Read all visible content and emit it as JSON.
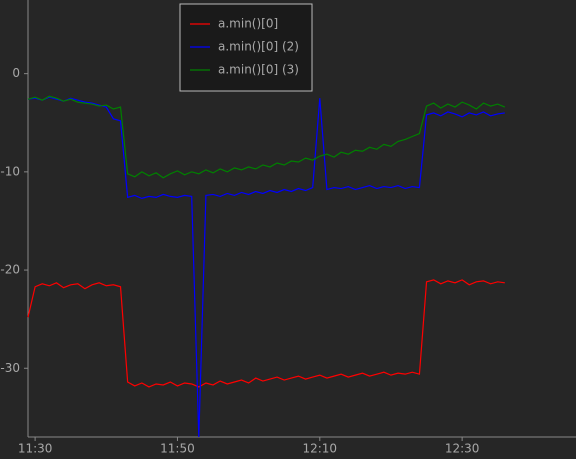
{
  "chart_data": {
    "type": "line",
    "x": [
      "11:29",
      "11:30",
      "11:31",
      "11:32",
      "11:33",
      "11:34",
      "11:35",
      "11:36",
      "11:37",
      "11:38",
      "11:39",
      "11:40",
      "11:41",
      "11:42",
      "11:43",
      "11:44",
      "11:45",
      "11:46",
      "11:47",
      "11:48",
      "11:49",
      "11:50",
      "11:51",
      "11:52",
      "11:53",
      "11:54",
      "11:55",
      "11:56",
      "11:57",
      "11:58",
      "11:59",
      "12:00",
      "12:01",
      "12:02",
      "12:03",
      "12:04",
      "12:05",
      "12:06",
      "12:07",
      "12:08",
      "12:09",
      "12:10",
      "12:11",
      "12:12",
      "12:13",
      "12:14",
      "12:15",
      "12:16",
      "12:17",
      "12:18",
      "12:19",
      "12:20",
      "12:21",
      "12:22",
      "12:23",
      "12:24",
      "12:25",
      "12:26",
      "12:27",
      "12:28",
      "12:29",
      "12:30",
      "12:31",
      "12:32",
      "12:33",
      "12:34",
      "12:35",
      "12:36"
    ],
    "series": [
      {
        "name": "a.min()[0]",
        "color": "#ff0000",
        "values": [
          -24.8,
          -21.7,
          -21.4,
          -21.6,
          -21.3,
          -21.8,
          -21.5,
          -21.4,
          -21.9,
          -21.5,
          -21.3,
          -21.6,
          -21.5,
          -21.7,
          -31.4,
          -31.8,
          -31.5,
          -31.9,
          -31.6,
          -31.7,
          -31.4,
          -31.8,
          -31.5,
          -31.6,
          -31.9,
          -31.5,
          -31.7,
          -31.3,
          -31.6,
          -31.4,
          -31.2,
          -31.5,
          -31.0,
          -31.3,
          -31.1,
          -30.9,
          -31.2,
          -31.0,
          -30.8,
          -31.1,
          -30.9,
          -30.7,
          -31.0,
          -30.8,
          -30.6,
          -30.9,
          -30.7,
          -30.5,
          -30.8,
          -30.6,
          -30.4,
          -30.7,
          -30.5,
          -30.6,
          -30.4,
          -30.6,
          -21.2,
          -21.0,
          -21.4,
          -21.1,
          -21.3,
          -21.0,
          -21.5,
          -21.2,
          -21.1,
          -21.4,
          -21.2,
          -21.3
        ]
      },
      {
        "name": "a.min()[0] (2)",
        "color": "#0000ff",
        "values": [
          -2.6,
          -2.5,
          -2.7,
          -2.4,
          -2.6,
          -2.8,
          -2.5,
          -2.7,
          -2.9,
          -3.0,
          -3.2,
          -3.4,
          -4.6,
          -4.8,
          -12.6,
          -12.4,
          -12.7,
          -12.5,
          -12.6,
          -12.3,
          -12.5,
          -12.6,
          -12.4,
          -12.5,
          -37,
          -12.4,
          -12.3,
          -12.5,
          -12.2,
          -12.4,
          -12.1,
          -12.3,
          -12.0,
          -12.2,
          -11.9,
          -12.1,
          -11.8,
          -12.0,
          -11.7,
          -11.9,
          -11.6,
          -2.5,
          -11.8,
          -11.6,
          -11.7,
          -11.5,
          -11.8,
          -11.6,
          -11.4,
          -11.7,
          -11.5,
          -11.6,
          -11.4,
          -11.7,
          -11.5,
          -11.6,
          -4.2,
          -4.0,
          -4.3,
          -3.9,
          -4.1,
          -4.4,
          -4.0,
          -4.2,
          -3.9,
          -4.3,
          -4.1,
          -4.0
        ]
      },
      {
        "name": "a.min()[0] (3)",
        "color": "#008000",
        "values": [
          -2.6,
          -2.4,
          -2.7,
          -2.3,
          -2.5,
          -2.8,
          -2.6,
          -2.9,
          -3.0,
          -3.1,
          -3.3,
          -3.2,
          -3.6,
          -3.4,
          -10.2,
          -10.5,
          -10.0,
          -10.4,
          -10.1,
          -10.6,
          -10.2,
          -9.9,
          -10.3,
          -10.0,
          -10.2,
          -9.8,
          -10.1,
          -9.7,
          -10.0,
          -9.6,
          -9.8,
          -9.5,
          -9.7,
          -9.3,
          -9.5,
          -9.1,
          -9.3,
          -8.9,
          -9.0,
          -8.6,
          -8.8,
          -8.4,
          -8.2,
          -8.5,
          -8.0,
          -8.2,
          -7.8,
          -7.9,
          -7.5,
          -7.7,
          -7.2,
          -7.4,
          -6.9,
          -6.7,
          -6.4,
          -6.1,
          -3.3,
          -3.0,
          -3.5,
          -3.1,
          -3.4,
          -2.9,
          -3.2,
          -3.6,
          -3.0,
          -3.3,
          -3.1,
          -3.4
        ]
      }
    ],
    "xlim": [
      "11:29",
      "12:46"
    ],
    "xticks": [
      "11:30",
      "11:50",
      "12:10",
      "12:30"
    ],
    "ylim": [
      -37,
      7.5
    ],
    "yticks": [
      0,
      -10,
      -20,
      -30
    ],
    "legend": "upper center",
    "grid": false
  }
}
